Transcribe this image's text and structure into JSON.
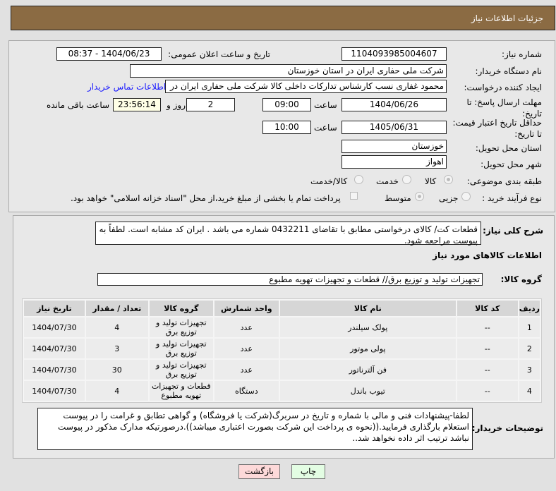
{
  "header": {
    "title": "جزئیات اطلاعات نیاز"
  },
  "form": {
    "need_number_label": "شماره نیاز:",
    "need_number": "1104093985004607",
    "announce_label": "تاریخ و ساعت اعلان عمومی:",
    "announce_value": "1404/06/23 - 08:37",
    "buyer_org_label": "نام دستگاه خریدار:",
    "buyer_org": "شرکت ملی حفاری ایران در استان خوزستان",
    "creator_label": "ایجاد کننده درخواست:",
    "creator": "محمود غفاری نسب کارشناس تدارکات داخلی  کالا شرکت ملی حفاری ایران در",
    "contact_link": "اطلاعات تماس خریدار",
    "deadline_label": "مهلت ارسال پاسخ: تا تاریخ:",
    "deadline_date": "1404/06/26",
    "time_label": "ساعت",
    "deadline_time": "09:00",
    "days": "2",
    "days_label": "روز و",
    "remaining": "23:56:14",
    "remaining_label": "ساعت باقی مانده",
    "validity_label": "حداقل تاریخ اعتبار قیمت: تا تاریخ:",
    "validity_date": "1405/06/31",
    "validity_time": "10:00",
    "province_label": "استان محل تحویل:",
    "province": "خوزستان",
    "city_label": "شهر محل تحویل:",
    "city": "اهواز",
    "category_label": "طبقه بندی موضوعی:",
    "category_options": [
      "کالا",
      "خدمت",
      "کالا/خدمت"
    ],
    "category_selected": "کالا",
    "process_label": "نوع فرآیند خرید :",
    "process_options": [
      "جزیی",
      "متوسط"
    ],
    "process_selected": "متوسط",
    "payment_note": "پرداخت تمام یا بخشی از مبلغ خرید،از محل \"اسناد خزانه اسلامی\" خواهد بود."
  },
  "details": {
    "description_label": "شرح کلی نیاز:",
    "description": "قطعات کت/ کالای درخواستی مطابق با تقاضای 0432211 شماره می باشد . ایران کد مشابه است. لطفاً به پیوست مراجعه شود.",
    "goods_title": "اطلاعات کالاهای مورد نیاز",
    "group_label": "گروه کالا:",
    "group": "تجهیزات تولید و توزیع برق//  قطعات و تجهیزات تهویه مطبوع",
    "columns": [
      "ردیف",
      "کد کالا",
      "نام کالا",
      "واحد شمارش",
      "گروه کالا",
      "تعداد / مقدار",
      "تاریخ نیاز"
    ],
    "rows": [
      [
        "1",
        "--",
        "پولک سیلندر",
        "عدد",
        "تجهیزات تولید و توزیع برق",
        "4",
        "1404/07/30"
      ],
      [
        "2",
        "--",
        "پولی موتور",
        "عدد",
        "تجهیزات تولید و توزیع برق",
        "3",
        "1404/07/30"
      ],
      [
        "3",
        "--",
        "فن آلترناتور",
        "عدد",
        "تجهیزات تولید و توزیع برق",
        "30",
        "1404/07/30"
      ],
      [
        "4",
        "--",
        "تیوب باندل",
        "دستگاه",
        "قطعات و تجهیزات تهویه مطبوع",
        "4",
        "1404/07/30"
      ]
    ],
    "notes_label": "توضیحات خریدار:",
    "notes": "لطفا-پیشنهادات فنی و مالی با شماره و تاریخ در سربرگ(شرکت یا فروشگاه) و گواهی تطابق و غرامت را در پیوست استعلام بارگذاری فرمایید.((نحوه ی پرداخت این شرکت بصورت اعتباری میباشد)).درصورتیکه مدارک مذکور در پیوست نباشد ترتیب اثر داده نخواهد شد.."
  },
  "buttons": {
    "back": "بازگشت",
    "print": "چاپ"
  },
  "colors": {
    "header": "#8b6b43",
    "back": "#fdd9d9",
    "print": "#e3fde3",
    "link": "#1a1aff"
  }
}
